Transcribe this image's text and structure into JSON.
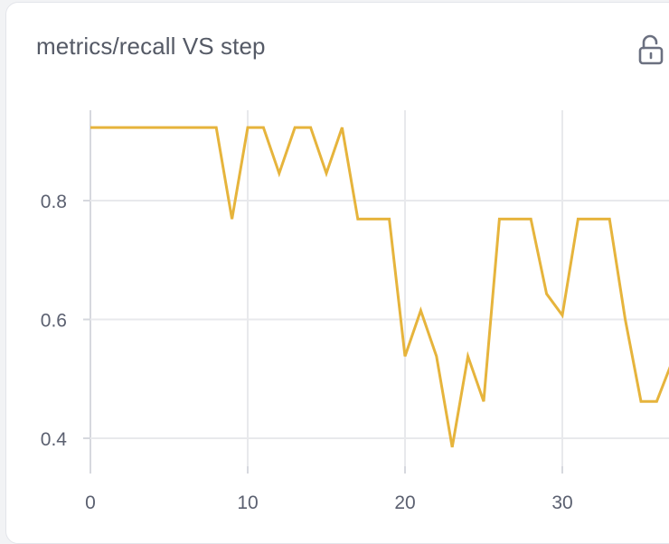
{
  "card": {
    "title": "metrics/recall VS step"
  },
  "icons": {
    "lock": "unlock-icon"
  },
  "colors": {
    "line": "#e6b43c",
    "grid": "#e8e9ec",
    "axis": "#d6d8de",
    "text": "#5b6070"
  },
  "chart_data": {
    "type": "line",
    "title": "metrics/recall VS step",
    "xlabel": "",
    "ylabel": "",
    "x_ticks": [
      0,
      10,
      20,
      30
    ],
    "y_ticks": [
      0.4,
      0.6,
      0.8
    ],
    "xlim": [
      0,
      37
    ],
    "ylim": [
      0.38,
      0.95
    ],
    "grid": true,
    "series": [
      {
        "x": [
          0,
          1,
          2,
          3,
          4,
          5,
          6,
          7,
          8,
          9,
          10,
          11,
          12,
          13,
          14,
          15,
          16,
          17,
          18,
          19,
          20,
          21,
          22,
          23,
          24,
          25,
          26,
          27,
          28,
          29,
          30,
          31,
          32,
          33,
          34,
          35,
          36,
          37
        ],
        "values": [
          0.923,
          0.923,
          0.923,
          0.923,
          0.923,
          0.923,
          0.923,
          0.923,
          0.923,
          0.769,
          0.923,
          0.923,
          0.846,
          0.923,
          0.923,
          0.846,
          0.923,
          0.769,
          0.769,
          0.769,
          0.538,
          0.615,
          0.538,
          0.385,
          0.538,
          0.462,
          0.769,
          0.769,
          0.769,
          0.643,
          0.607,
          0.769,
          0.769,
          0.769,
          0.6,
          0.462,
          0.462,
          0.53
        ]
      }
    ]
  }
}
